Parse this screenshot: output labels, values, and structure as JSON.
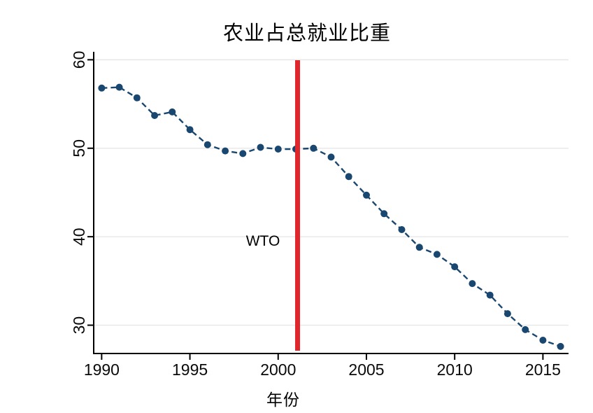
{
  "chart_data": {
    "type": "line",
    "title": "农业占总就业比重",
    "xlabel": "年份",
    "ylabel": "",
    "line_style": "dashed",
    "marker": "circle",
    "grid": "horizontal-only",
    "legend_position": "none",
    "x_ticks": [
      1990,
      1995,
      2000,
      2005,
      2010,
      2015
    ],
    "y_ticks": [
      30,
      40,
      50,
      60
    ],
    "xlim": [
      1989.55,
      2016.45
    ],
    "ylim": [
      26.8,
      60.9
    ],
    "series": [
      {
        "name": "农业占总就业比重 (%)",
        "x": [
          1990,
          1991,
          1992,
          1993,
          1994,
          1995,
          1996,
          1997,
          1998,
          1999,
          2000,
          2001,
          2002,
          2003,
          2004,
          2005,
          2006,
          2007,
          2008,
          2009,
          2010,
          2011,
          2012,
          2013,
          2014,
          2015,
          2016
        ],
        "values": [
          56.8,
          56.9,
          55.7,
          53.7,
          54.1,
          52.1,
          50.4,
          49.7,
          49.4,
          50.1,
          49.9,
          49.9,
          50.0,
          49.0,
          46.8,
          44.7,
          42.6,
          40.8,
          38.8,
          38.0,
          36.6,
          34.7,
          33.4,
          31.3,
          29.5,
          28.3,
          27.6
        ]
      }
    ],
    "annotation": {
      "label": "WTO",
      "x": 2001.1
    },
    "colors": {
      "series": "#1a476f",
      "event_line": "#e0252b",
      "grid": "#e7e7e7",
      "axis": "#000000",
      "tick_label": "#0a0a0a"
    }
  }
}
